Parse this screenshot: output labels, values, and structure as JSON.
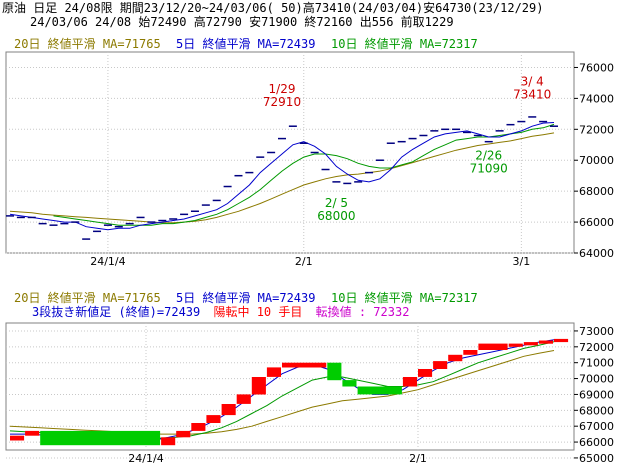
{
  "header": {
    "line1": "原油 日足 24/08限 期間23/12/20~24/03/06( 50)高73410(24/03/04)安64730(23/12/29)",
    "line2": "24/03/06 24/08 始72490 高72790 安71900 終72160 出556 前取1229"
  },
  "colors": {
    "ma20": "#8c7a00",
    "ma5": "#0000cc",
    "ma10": "#009900",
    "up_brick": "#ff0000",
    "down_brick": "#00cc00",
    "ann_high": "#cc0000",
    "ann_low": "#009900",
    "text3": "#0000cc",
    "text_status": "#ff0000",
    "text_turn": "#cc00cc"
  },
  "chart_data": [
    {
      "type": "candlestick",
      "legend": {
        "ma20": "20日 終値平滑 MA=71765",
        "ma5": "5日 終値平滑 MA=72439",
        "ma10": "10日 終値平滑 MA=72317"
      },
      "ylim": [
        64000,
        77000
      ],
      "yticks": [
        "76000",
        "74000",
        "72000",
        "70000",
        "68000",
        "66000",
        "64000"
      ],
      "xticks": [
        {
          "label": "24/1/4",
          "index": 9
        },
        {
          "label": "2/1",
          "index": 27
        },
        {
          "label": "3/1",
          "index": 47
        }
      ],
      "annotations": [
        {
          "date": "1/29",
          "value": "72910",
          "index": 25,
          "kind": "high"
        },
        {
          "date": "2/ 5",
          "value": "68000",
          "index": 30,
          "kind": "low"
        },
        {
          "date": "2/26",
          "value": "71090",
          "index": 44,
          "kind": "low"
        },
        {
          "date": "3/ 4",
          "value": "73410",
          "index": 48,
          "kind": "high"
        }
      ],
      "close": [
        66400,
        66300,
        66300,
        65900,
        65800,
        65900,
        66000,
        64900,
        65400,
        65800,
        65700,
        65900,
        66300,
        66000,
        66100,
        66200,
        66500,
        66700,
        67100,
        67400,
        68300,
        69000,
        69200,
        70200,
        70500,
        71400,
        72200,
        71100,
        70500,
        69400,
        68600,
        68500,
        68600,
        69200,
        70000,
        71100,
        71200,
        71400,
        71600,
        71900,
        72000,
        72000,
        71800,
        71600,
        71200,
        71900,
        72300,
        72500,
        72800,
        72500,
        72200
      ],
      "ma5": [
        66500,
        66400,
        66300,
        66200,
        66100,
        66000,
        66000,
        65700,
        65600,
        65500,
        65600,
        65600,
        65800,
        65900,
        66000,
        66100,
        66200,
        66400,
        66600,
        66800,
        67200,
        67800,
        68400,
        69200,
        69800,
        70400,
        71000,
        71200,
        70900,
        70400,
        69600,
        69100,
        68700,
        68600,
        68800,
        69400,
        70200,
        70700,
        71100,
        71500,
        71700,
        71800,
        71900,
        71700,
        71500,
        71500,
        71700,
        71900,
        72200,
        72400,
        72439
      ],
      "ma10": [
        null,
        null,
        null,
        null,
        66400,
        66300,
        66200,
        66100,
        66000,
        65900,
        65800,
        65800,
        65800,
        65800,
        65900,
        65900,
        66000,
        66100,
        66300,
        66500,
        66800,
        67200,
        67600,
        68100,
        68700,
        69300,
        69800,
        70200,
        70400,
        70400,
        70300,
        70100,
        69800,
        69600,
        69500,
        69500,
        69700,
        69900,
        70300,
        70700,
        71000,
        71300,
        71400,
        71500,
        71500,
        71600,
        71700,
        71800,
        72000,
        72100,
        72317
      ],
      "ma20": [
        66700,
        66650,
        66600,
        66500,
        66450,
        66400,
        66350,
        66300,
        66250,
        66200,
        66150,
        66100,
        66050,
        66000,
        65950,
        65950,
        66000,
        66050,
        66150,
        66300,
        66500,
        66700,
        66950,
        67200,
        67500,
        67800,
        68100,
        68400,
        68600,
        68800,
        68950,
        69050,
        69100,
        69200,
        69300,
        69450,
        69650,
        69850,
        70050,
        70250,
        70450,
        70650,
        70800,
        70950,
        71050,
        71150,
        71250,
        71400,
        71550,
        71650,
        71765
      ]
    },
    {
      "type": "three-line-break",
      "legend": {
        "ma20": "20日 終値平滑 MA=71765",
        "ma5": "5日 終値平滑 MA=72439",
        "ma10": "10日 終値平滑 MA=72317"
      },
      "line3": "3段抜き新値足 (終値)=72439",
      "status": "陽転中 10 手目",
      "turn_value": "転換値 : 72332",
      "ylim": [
        65500,
        73500
      ],
      "yticks": [
        "73000",
        "72000",
        "71000",
        "70000",
        "69000",
        "68000",
        "67000",
        "66000",
        "65000"
      ],
      "xticks": [
        {
          "label": "24/1/4",
          "index": 9
        },
        {
          "label": "2/1",
          "index": 27
        },
        {
          "label": "3/1",
          "index": 47
        }
      ],
      "bricks": [
        {
          "from": 0,
          "to": 1,
          "lo": 66100,
          "hi": 66400,
          "dir": "up"
        },
        {
          "from": 1,
          "to": 2,
          "lo": 66400,
          "hi": 66700,
          "dir": "up"
        },
        {
          "from": 2,
          "to": 10,
          "lo": 65800,
          "hi": 66700,
          "dir": "down"
        },
        {
          "from": 10,
          "to": 11,
          "lo": 65800,
          "hi": 66300,
          "dir": "up"
        },
        {
          "from": 11,
          "to": 12,
          "lo": 66300,
          "hi": 66700,
          "dir": "up"
        },
        {
          "from": 12,
          "to": 13,
          "lo": 66700,
          "hi": 67200,
          "dir": "up"
        },
        {
          "from": 13,
          "to": 14,
          "lo": 67200,
          "hi": 67700,
          "dir": "up"
        },
        {
          "from": 14,
          "to": 15,
          "lo": 67700,
          "hi": 68400,
          "dir": "up"
        },
        {
          "from": 15,
          "to": 16,
          "lo": 68400,
          "hi": 69000,
          "dir": "up"
        },
        {
          "from": 16,
          "to": 17,
          "lo": 69000,
          "hi": 70100,
          "dir": "up"
        },
        {
          "from": 17,
          "to": 18,
          "lo": 70100,
          "hi": 70700,
          "dir": "up"
        },
        {
          "from": 18,
          "to": 21,
          "lo": 70700,
          "hi": 71000,
          "dir": "up"
        },
        {
          "from": 21,
          "to": 22,
          "lo": 69900,
          "hi": 71000,
          "dir": "down"
        },
        {
          "from": 22,
          "to": 23,
          "lo": 69500,
          "hi": 69900,
          "dir": "down"
        },
        {
          "from": 23,
          "to": 26,
          "lo": 69000,
          "hi": 69500,
          "dir": "down"
        },
        {
          "from": 26,
          "to": 27,
          "lo": 69500,
          "hi": 70100,
          "dir": "up"
        },
        {
          "from": 27,
          "to": 28,
          "lo": 70100,
          "hi": 70600,
          "dir": "up"
        },
        {
          "from": 28,
          "to": 29,
          "lo": 70600,
          "hi": 71100,
          "dir": "up"
        },
        {
          "from": 29,
          "to": 30,
          "lo": 71100,
          "hi": 71500,
          "dir": "up"
        },
        {
          "from": 30,
          "to": 31,
          "lo": 71500,
          "hi": 71800,
          "dir": "up"
        },
        {
          "from": 31,
          "to": 33,
          "lo": 71800,
          "hi": 72200,
          "dir": "up"
        },
        {
          "from": 33,
          "to": 34,
          "lo": 72000,
          "hi": 72200,
          "dir": "up"
        },
        {
          "from": 34,
          "to": 35,
          "lo": 72100,
          "hi": 72300,
          "dir": "up"
        },
        {
          "from": 35,
          "to": 36,
          "lo": 72200,
          "hi": 72400,
          "dir": "up"
        },
        {
          "from": 36,
          "to": 37,
          "lo": 72300,
          "hi": 72500,
          "dir": "up"
        }
      ],
      "ma5": [
        66500,
        66500,
        66450,
        66400,
        66350,
        66300,
        66250,
        66200,
        66150,
        66100,
        66200,
        66400,
        66700,
        67100,
        67600,
        68200,
        68900,
        69600,
        70300,
        70700,
        70900,
        70600,
        70000,
        69400,
        69000,
        69000,
        69300,
        69900,
        70500,
        71000,
        71300,
        71500,
        71700,
        71900,
        72100,
        72300,
        72439
      ],
      "ma10": [
        66700,
        66650,
        66600,
        66550,
        66500,
        66450,
        66400,
        66350,
        66300,
        66250,
        66250,
        66300,
        66400,
        66600,
        66900,
        67300,
        67800,
        68300,
        68900,
        69400,
        69900,
        70100,
        70100,
        69900,
        69700,
        69500,
        69500,
        69600,
        69800,
        70200,
        70600,
        71000,
        71300,
        71600,
        71900,
        72100,
        72317
      ],
      "ma20": [
        67000,
        66950,
        66900,
        66850,
        66800,
        66750,
        66700,
        66650,
        66600,
        66550,
        66500,
        66500,
        66500,
        66550,
        66650,
        66800,
        67000,
        67300,
        67600,
        67900,
        68200,
        68400,
        68600,
        68700,
        68800,
        68900,
        69100,
        69300,
        69600,
        69900,
        70200,
        70500,
        70800,
        71100,
        71400,
        71600,
        71765
      ]
    }
  ]
}
